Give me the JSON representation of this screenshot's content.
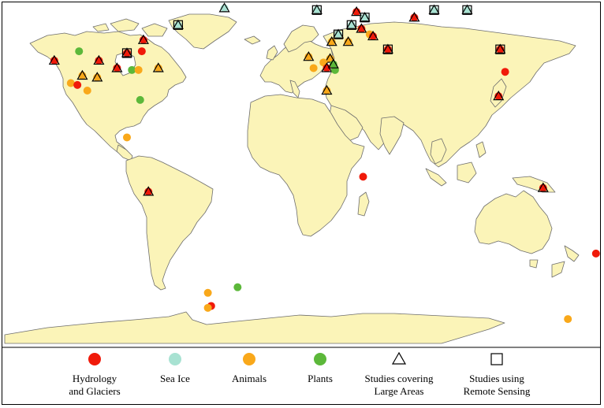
{
  "colors": {
    "hydrology": "#f01a0a",
    "sea_ice": "#a8e2d2",
    "animals": "#f9a81a",
    "plants": "#5cb83a",
    "land": "#fbf4b8",
    "coast": "#6d6d6d"
  },
  "legend": [
    {
      "key": "hydrology",
      "shape": "circle",
      "lines": [
        "Hydrology",
        "and Glaciers"
      ]
    },
    {
      "key": "sea_ice",
      "shape": "circle",
      "lines": [
        "Sea Ice"
      ]
    },
    {
      "key": "animals",
      "shape": "circle",
      "lines": [
        "Animals"
      ]
    },
    {
      "key": "plants",
      "shape": "circle",
      "lines": [
        "Plants"
      ]
    },
    {
      "key": "large_areas",
      "shape": "triangle",
      "lines": [
        "Studies covering",
        "Large Areas"
      ]
    },
    {
      "key": "remote_sensing",
      "shape": "square",
      "lines": [
        "Studies using",
        "Remote Sensing"
      ]
    }
  ],
  "study_sites": [
    {
      "lon": -96,
      "lat": 72,
      "cat": "hydrology",
      "tri": true,
      "sq": false
    },
    {
      "lon": -135,
      "lat": 66,
      "cat": "plants",
      "tri": false,
      "sq": false
    },
    {
      "lon": -150,
      "lat": 61,
      "cat": "hydrology",
      "tri": true,
      "sq": false
    },
    {
      "lon": -123,
      "lat": 61,
      "cat": "hydrology",
      "tri": true,
      "sq": false
    },
    {
      "lon": -112,
      "lat": 57,
      "cat": "hydrology",
      "tri": true,
      "sq": false
    },
    {
      "lon": -103,
      "lat": 56,
      "cat": "plants",
      "tri": false,
      "sq": false
    },
    {
      "lon": -99,
      "lat": 56,
      "cat": "animals",
      "tri": false,
      "sq": false
    },
    {
      "lon": -133,
      "lat": 53,
      "cat": "animals",
      "tri": true,
      "sq": false
    },
    {
      "lon": -124,
      "lat": 52,
      "cat": "animals",
      "tri": true,
      "sq": false
    },
    {
      "lon": -140,
      "lat": 49,
      "cat": "animals",
      "tri": false,
      "sq": false
    },
    {
      "lon": -136,
      "lat": 48,
      "cat": "hydrology",
      "tri": false,
      "sq": false
    },
    {
      "lon": -130,
      "lat": 45,
      "cat": "animals",
      "tri": false,
      "sq": false
    },
    {
      "lon": -106,
      "lat": 65,
      "cat": "hydrology",
      "tri": true,
      "sq": true
    },
    {
      "lon": -97,
      "lat": 66,
      "cat": "hydrology",
      "tri": false,
      "sq": false
    },
    {
      "lon": -87,
      "lat": 57,
      "cat": "animals",
      "tri": true,
      "sq": false
    },
    {
      "lon": -98,
      "lat": 40,
      "cat": "plants",
      "tri": false,
      "sq": false
    },
    {
      "lon": -106,
      "lat": 20,
      "cat": "animals",
      "tri": false,
      "sq": false
    },
    {
      "lon": -93,
      "lat": -9,
      "cat": "hydrology",
      "tri": true,
      "sq": false
    },
    {
      "lon": -47,
      "lat": 89,
      "cat": "sea_ice",
      "tri": true,
      "sq": false
    },
    {
      "lon": -75,
      "lat": 80,
      "cat": "sea_ice",
      "tri": true,
      "sq": true
    },
    {
      "lon": 9,
      "lat": 88,
      "cat": "sea_ice",
      "tri": true,
      "sq": true
    },
    {
      "lon": 33,
      "lat": 87,
      "cat": "hydrology",
      "tri": true,
      "sq": false
    },
    {
      "lon": 38,
      "lat": 84,
      "cat": "sea_ice",
      "tri": true,
      "sq": true
    },
    {
      "lon": 68,
      "lat": 84,
      "cat": "hydrology",
      "tri": true,
      "sq": false
    },
    {
      "lon": 80,
      "lat": 88,
      "cat": "sea_ice",
      "tri": true,
      "sq": true
    },
    {
      "lon": 100,
      "lat": 88,
      "cat": "sea_ice",
      "tri": true,
      "sq": true
    },
    {
      "lon": 30,
      "lat": 80,
      "cat": "sea_ice",
      "tri": true,
      "sq": true
    },
    {
      "lon": 36,
      "lat": 78,
      "cat": "hydrology",
      "tri": true,
      "sq": false
    },
    {
      "lon": 22,
      "lat": 75,
      "cat": "sea_ice",
      "tri": true,
      "sq": true
    },
    {
      "lon": 41,
      "lat": 75,
      "cat": "animals",
      "tri": false,
      "sq": false
    },
    {
      "lon": 43,
      "lat": 74,
      "cat": "hydrology",
      "tri": true,
      "sq": false
    },
    {
      "lon": 18,
      "lat": 71,
      "cat": "animals",
      "tri": true,
      "sq": false
    },
    {
      "lon": 28,
      "lat": 71,
      "cat": "animals",
      "tri": true,
      "sq": false
    },
    {
      "lon": 4,
      "lat": 63,
      "cat": "animals",
      "tri": true,
      "sq": false
    },
    {
      "lon": 17,
      "lat": 62,
      "cat": "animals",
      "tri": true,
      "sq": false
    },
    {
      "lon": 13,
      "lat": 60,
      "cat": "animals",
      "tri": false,
      "sq": false
    },
    {
      "lon": 7,
      "lat": 57,
      "cat": "animals",
      "tri": false,
      "sq": false
    },
    {
      "lon": 15,
      "lat": 57,
      "cat": "hydrology",
      "tri": true,
      "sq": false
    },
    {
      "lon": 20,
      "lat": 56,
      "cat": "plants",
      "tri": false,
      "sq": false
    },
    {
      "lon": 19,
      "lat": 59,
      "cat": "plants",
      "tri": true,
      "sq": false
    },
    {
      "lon": 15,
      "lat": 45,
      "cat": "animals",
      "tri": true,
      "sq": false
    },
    {
      "lon": 52,
      "lat": 67,
      "cat": "hydrology",
      "tri": true,
      "sq": true
    },
    {
      "lon": 120,
      "lat": 67,
      "cat": "hydrology",
      "tri": true,
      "sq": true
    },
    {
      "lon": 123,
      "lat": 55,
      "cat": "hydrology",
      "tri": false,
      "sq": false
    },
    {
      "lon": 119,
      "lat": 42,
      "cat": "hydrology",
      "tri": true,
      "sq": false
    },
    {
      "lon": 37,
      "lat": -1,
      "cat": "hydrology",
      "tri": false,
      "sq": false
    },
    {
      "lon": 146,
      "lat": -7,
      "cat": "hydrology",
      "tri": true,
      "sq": false
    },
    {
      "lon": 178,
      "lat": -42,
      "cat": "hydrology",
      "tri": false,
      "sq": false
    },
    {
      "lon": 161,
      "lat": -77,
      "cat": "animals",
      "tri": false,
      "sq": false
    },
    {
      "lon": -57,
      "lat": -63,
      "cat": "animals",
      "tri": false,
      "sq": false
    },
    {
      "lon": -39,
      "lat": -60,
      "cat": "plants",
      "tri": false,
      "sq": false
    },
    {
      "lon": -55,
      "lat": -70,
      "cat": "hydrology",
      "tri": false,
      "sq": false
    },
    {
      "lon": -57,
      "lat": -71,
      "cat": "animals",
      "tri": false,
      "sq": false
    }
  ]
}
